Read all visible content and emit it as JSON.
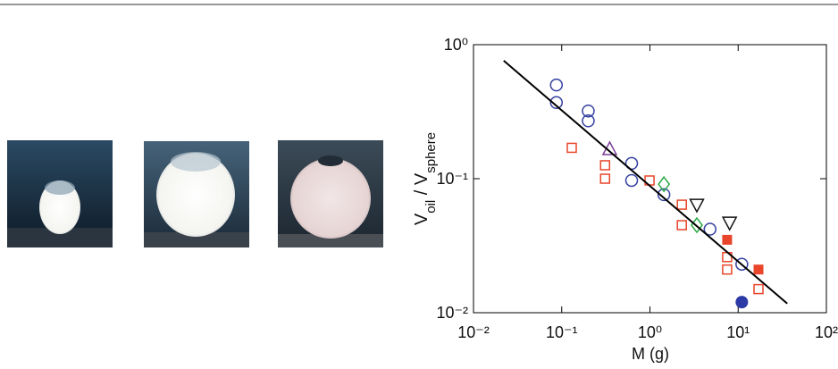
{
  "chart_data": {
    "type": "scatter",
    "xlabel": "M (g)",
    "ylabel_parts": [
      "V",
      "oil",
      " / V",
      "sphere"
    ],
    "log_x": true,
    "log_y": true,
    "xlim": [
      0.01,
      100
    ],
    "ylim": [
      0.01,
      1
    ],
    "xticks": [
      {
        "value": 0.01,
        "label": "10⁻²"
      },
      {
        "value": 0.1,
        "label": "10⁻¹"
      },
      {
        "value": 1,
        "label": "10⁰"
      },
      {
        "value": 10,
        "label": "10¹"
      },
      {
        "value": 100,
        "label": "10²"
      }
    ],
    "yticks": [
      {
        "value": 0.01,
        "label": "10⁻²"
      },
      {
        "value": 0.1,
        "label": "10⁻¹"
      },
      {
        "value": 1,
        "label": "10⁰"
      }
    ],
    "series": [
      {
        "marker": "circle-open",
        "color": "#3441a0",
        "x": [
          0.087,
          0.087,
          0.2,
          0.2,
          0.62,
          0.62,
          1.44,
          4.8,
          11
        ],
        "values": [
          0.5,
          0.37,
          0.32,
          0.27,
          0.13,
          0.097,
          0.076,
          0.042,
          0.023
        ]
      },
      {
        "marker": "circle-filled",
        "color": "#2c3aa6",
        "x": [
          11
        ],
        "values": [
          0.012
        ]
      },
      {
        "marker": "square-open",
        "color": "#e8452a",
        "x": [
          0.13,
          0.31,
          0.31,
          0.99,
          2.3,
          2.3,
          7.5,
          7.5,
          17
        ],
        "values": [
          0.17,
          0.126,
          0.1,
          0.097,
          0.064,
          0.045,
          0.026,
          0.021,
          0.015
        ]
      },
      {
        "marker": "square-filled",
        "color": "#e8452a",
        "x": [
          7.5,
          17
        ],
        "values": [
          0.035,
          0.021
        ]
      },
      {
        "marker": "triangle-up",
        "color": "#7b3f98",
        "x": [
          0.35
        ],
        "values": [
          0.166
        ]
      },
      {
        "marker": "diamond",
        "color": "#2aa845",
        "x": [
          1.44,
          3.4
        ],
        "values": [
          0.091,
          0.045
        ]
      },
      {
        "marker": "triangle-down",
        "color": "#111111",
        "x": [
          3.4,
          8
        ],
        "values": [
          0.064,
          0.047
        ]
      },
      {
        "marker": "line",
        "color": "#000000",
        "x": [
          0.022,
          36
        ],
        "values": [
          0.76,
          0.0117
        ]
      }
    ]
  }
}
